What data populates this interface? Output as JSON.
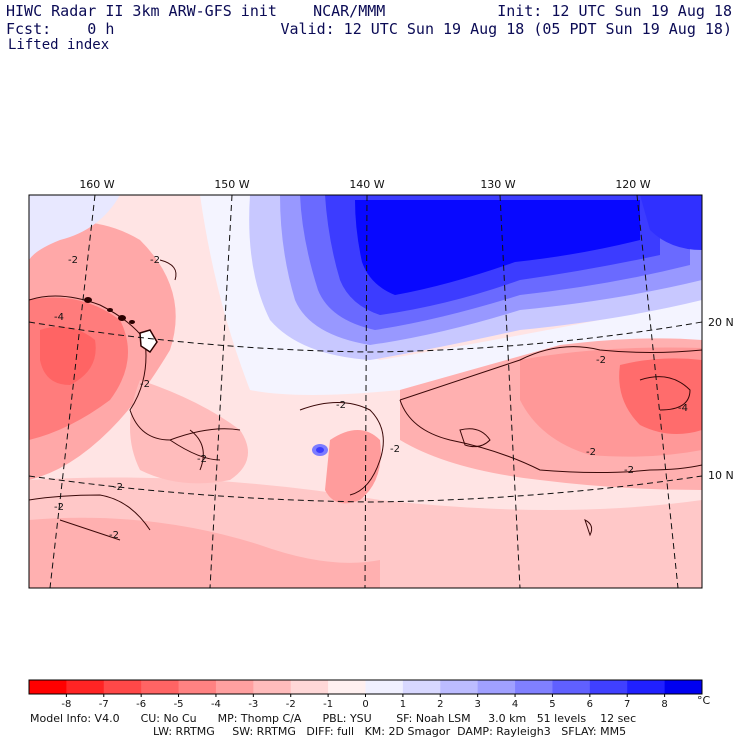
{
  "header": {
    "title": "HIWC Radar II 3km ARW-GFS init",
    "org": "NCAR/MMM",
    "init": "Init: 12 UTC Sun 19 Aug 18",
    "fcst_label": "Fcst:",
    "fcst_value": "0 h",
    "valid": "Valid: 12 UTC Sun 19 Aug 18 (05 PDT Sun 19 Aug 18)",
    "field": "Lifted index"
  },
  "map": {
    "longitude_labels": [
      "160 W",
      "150 W",
      "140 W",
      "130 W",
      "120 W"
    ],
    "latitude_labels": [
      "20 N",
      "10 N"
    ],
    "contour_labels": [
      "-2",
      "-4"
    ]
  },
  "colorbar": {
    "unit": "°C",
    "ticks": [
      "-8",
      "-7",
      "-6",
      "-5",
      "-4",
      "-3",
      "-2",
      "-1",
      "0",
      "1",
      "2",
      "3",
      "4",
      "5",
      "6",
      "7",
      "8"
    ],
    "colors": [
      "#ff0000",
      "#ff2424",
      "#ff4848",
      "#ff6464",
      "#ff8282",
      "#ffa0a0",
      "#ffbcbc",
      "#ffd8d8",
      "#fff0f0",
      "#f0f0ff",
      "#d8d8ff",
      "#bcbcff",
      "#a0a0ff",
      "#8080ff",
      "#6060ff",
      "#4040ff",
      "#2020ff",
      "#0000f0"
    ]
  },
  "footer": {
    "model_info": "Model Info: V4.0",
    "cu": "CU: No Cu",
    "mp": "MP: Thomp C/A",
    "pbl": "PBL: YSU",
    "sf": "SF: Noah LSM",
    "res": "3.0 km",
    "levels": "51 levels",
    "dt": "12 sec",
    "lw": "LW: RRTMG",
    "sw": "SW: RRTMG",
    "diff": "DIFF: full",
    "km": "KM: 2D Smagor",
    "damp": "DAMP: Rayleigh3",
    "sflay": "SFLAY: MM5"
  }
}
